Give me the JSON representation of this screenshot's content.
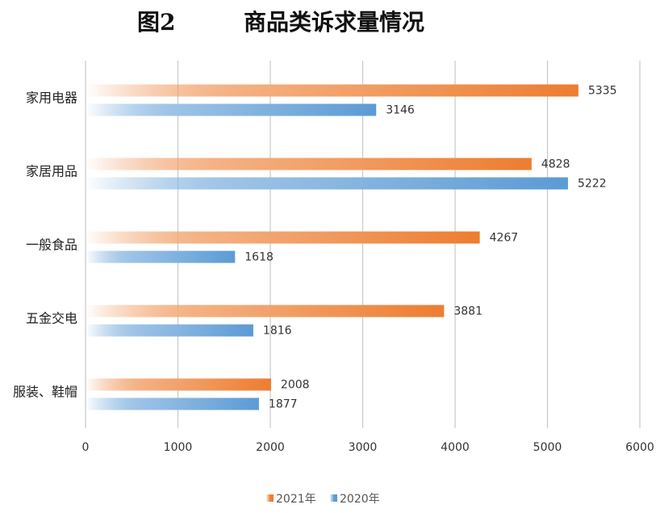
{
  "chart_data": {
    "type": "bar",
    "orientation": "horizontal",
    "figure_label": "图2",
    "title": "商品类诉求量情况",
    "categories": [
      "家用电器",
      "家居用品",
      "一般食品",
      "五金交电",
      "服装、鞋帽"
    ],
    "series": [
      {
        "name": "2021年",
        "values": [
          5335,
          4828,
          4267,
          3881,
          2008
        ],
        "color": "#ED7D31"
      },
      {
        "name": "2020年",
        "values": [
          3146,
          5222,
          1618,
          1816,
          1877
        ],
        "color": "#5B9BD5"
      }
    ],
    "xlim": [
      0,
      6000
    ],
    "xticks": [
      "0",
      "1000",
      "2000",
      "3000",
      "4000",
      "5000",
      "6000"
    ],
    "grid": true,
    "legend_position": "bottom-center"
  }
}
